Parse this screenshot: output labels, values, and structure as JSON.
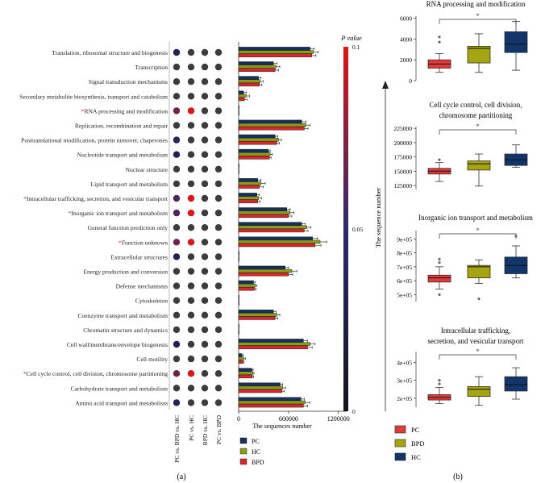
{
  "panel_labels": {
    "a": "(a)",
    "b": "(b)"
  },
  "colors": {
    "PC": "#14305c",
    "HC": "#8c9a1a",
    "BPD": "#d8262c",
    "dot_default": "#3c3c3c",
    "box_PC": "#e23a3a",
    "box_BPD": "#a5a512",
    "box_HC": "#12366a"
  },
  "chart_data": [
    {
      "type": "dot-matrix",
      "comparisons": [
        "PC vs. BPD vs. HC",
        "PC vs. HC",
        "BPD vs. HC",
        "PC vs. BPD"
      ],
      "categories": [
        "Translation, ribosomal structure and biogenesis",
        "Transcription",
        "Signal transduction mechanisms",
        "Secondary metabolite biosynthesis, transport and catabolism",
        "RNA processing and modification",
        "Replication, recombination and repair",
        "Posttranslational modification, protein turnover, chaperones",
        "Nucleotide transport and metabolism",
        "Nuclear structure",
        "Lipid transport and metabolism",
        "Intracellular trafficking, secretion, and vesicular transport",
        "Inorganic ion transport and metabolism",
        "General function prediction only",
        "Function unknown",
        "Extracellular structures",
        "Energy production and conversion",
        "Defense mechanisms",
        "Cytoskeleton",
        "Coenzyme transport and metabolism",
        "Chromatin structure and dynamics",
        "Cell wall/membrane/envelope biogenesis",
        "Cell motility",
        "Cell cycle control, cell division, chromosome partitioning",
        "Carbohydrate transport and metabolism",
        "Amino acid transport and metabolism"
      ],
      "significant_marker": "*",
      "significant": [
        4,
        10,
        11,
        13,
        22
      ],
      "p_values": [
        [
          0.035,
          null,
          null,
          null
        ],
        [
          null,
          null,
          null,
          null
        ],
        [
          null,
          null,
          null,
          null
        ],
        [
          null,
          null,
          null,
          null
        ],
        [
          0.07,
          0.1,
          null,
          null
        ],
        [
          null,
          null,
          null,
          null
        ],
        [
          0.04,
          null,
          null,
          null
        ],
        [
          0.035,
          null,
          null,
          null
        ],
        [
          null,
          null,
          null,
          null
        ],
        [
          null,
          null,
          null,
          null
        ],
        [
          0.06,
          0.1,
          null,
          null
        ],
        [
          0.06,
          0.1,
          null,
          null
        ],
        [
          null,
          null,
          null,
          null
        ],
        [
          0.07,
          0.1,
          null,
          null
        ],
        [
          0.035,
          null,
          null,
          null
        ],
        [
          null,
          null,
          null,
          null
        ],
        [
          null,
          null,
          null,
          null
        ],
        [
          null,
          null,
          null,
          null
        ],
        [
          null,
          null,
          null,
          null
        ],
        [
          null,
          null,
          null,
          null
        ],
        [
          0.035,
          null,
          null,
          null
        ],
        [
          null,
          null,
          null,
          null
        ],
        [
          0.07,
          0.1,
          null,
          null
        ],
        [
          null,
          null,
          null,
          null
        ],
        [
          0.035,
          null,
          null,
          null
        ]
      ],
      "colorbar": {
        "title": "P value",
        "ticks": [
          "0.1",
          "0.05",
          "0"
        ],
        "range": [
          0,
          0.1
        ]
      }
    },
    {
      "type": "bar",
      "orientation": "horizontal",
      "xlabel": "The sequences number",
      "ticks": [
        "0",
        "600000",
        "1200000"
      ],
      "xlim": [
        0,
        1300000
      ],
      "legend": [
        "PC",
        "HC",
        "BPD"
      ],
      "series": [
        {
          "name": "PC",
          "values": [
            860000,
            420000,
            240000,
            60000,
            3000,
            760000,
            440000,
            360000,
            3000,
            230000,
            220000,
            580000,
            760000,
            890000,
            3000,
            560000,
            180000,
            3000,
            420000,
            3000,
            780000,
            40000,
            160000,
            500000,
            750000
          ],
          "errors": [
            50000,
            40000,
            30000,
            30000,
            1000,
            50000,
            30000,
            20000,
            1000,
            40000,
            30000,
            40000,
            40000,
            60000,
            1000,
            40000,
            20000,
            1000,
            30000,
            1000,
            50000,
            15000,
            15000,
            30000,
            40000
          ]
        },
        {
          "name": "HC",
          "values": [
            900000,
            450000,
            260000,
            90000,
            3000,
            810000,
            480000,
            380000,
            3000,
            270000,
            240000,
            620000,
            820000,
            980000,
            3000,
            640000,
            200000,
            3000,
            460000,
            3000,
            860000,
            60000,
            170000,
            530000,
            800000
          ],
          "errors": [
            60000,
            45000,
            35000,
            40000,
            1000,
            50000,
            35000,
            25000,
            1000,
            50000,
            35000,
            45000,
            50000,
            80000,
            1000,
            60000,
            20000,
            1000,
            35000,
            1000,
            60000,
            20000,
            15000,
            35000,
            60000
          ]
        },
        {
          "name": "BPD",
          "values": [
            880000,
            440000,
            250000,
            70000,
            3000,
            790000,
            460000,
            370000,
            3000,
            250000,
            230000,
            600000,
            790000,
            920000,
            3000,
            600000,
            190000,
            3000,
            440000,
            3000,
            830000,
            50000,
            165000,
            520000,
            780000
          ],
          "errors": [
            50000,
            40000,
            30000,
            30000,
            1000,
            45000,
            30000,
            20000,
            1000,
            45000,
            30000,
            40000,
            45000,
            70000,
            1000,
            50000,
            20000,
            1000,
            30000,
            1000,
            55000,
            15000,
            15000,
            30000,
            50000
          ]
        }
      ]
    },
    {
      "type": "box",
      "title": "RNA processing and modification",
      "ylabel": "The sequence number",
      "groups": [
        "PC",
        "BPD",
        "HC"
      ],
      "ylim": [
        0,
        6200
      ],
      "yticks": [
        "0",
        "2000",
        "4000",
        "6000"
      ],
      "significance": "*",
      "boxes": [
        {
          "group": "PC",
          "min": 800,
          "q1": 1200,
          "median": 1600,
          "q3": 2000,
          "max": 2600,
          "outliers": [
            3700,
            4200
          ]
        },
        {
          "group": "BPD",
          "min": 800,
          "q1": 1700,
          "median": 3100,
          "q3": 3300,
          "max": 4500,
          "outliers": []
        },
        {
          "group": "HC",
          "min": 1000,
          "q1": 2700,
          "median": 3500,
          "q3": 4700,
          "max": 5700,
          "outliers": []
        }
      ]
    },
    {
      "type": "box",
      "title": "Cell cycle control, cell division, chromosome partitioning",
      "ylabel": "",
      "groups": [
        "PC",
        "BPD",
        "HC"
      ],
      "ylim": [
        118000,
        228000
      ],
      "yticks": [
        "125000",
        "150000",
        "175000",
        "200000",
        "225000"
      ],
      "significance": "*",
      "boxes": [
        {
          "group": "PC",
          "min": 132000,
          "q1": 145000,
          "median": 150000,
          "q3": 155000,
          "max": 165000,
          "outliers": [
            170000
          ]
        },
        {
          "group": "BPD",
          "min": 124000,
          "q1": 152000,
          "median": 163000,
          "q3": 168000,
          "max": 180000,
          "outliers": []
        },
        {
          "group": "HC",
          "min": 157000,
          "q1": 160000,
          "median": 170000,
          "q3": 180000,
          "max": 196000,
          "outliers": []
        }
      ]
    },
    {
      "type": "box",
      "title": "Inorganic ion transport and metabolism",
      "ylabel": "",
      "groups": [
        "PC",
        "BPD",
        "HC"
      ],
      "ylim": [
        450000,
        960000
      ],
      "yticks": [
        "5e+05",
        "6e+05",
        "7e+05",
        "8e+05",
        "9e+05"
      ],
      "significance": "*",
      "boxes": [
        {
          "group": "PC",
          "min": 540000,
          "q1": 590000,
          "median": 620000,
          "q3": 640000,
          "max": 700000,
          "outliers": [
            500000,
            730000,
            755000
          ]
        },
        {
          "group": "BPD",
          "min": 580000,
          "q1": 620000,
          "median": 700000,
          "q3": 710000,
          "max": 750000,
          "outliers": [
            470000
          ]
        },
        {
          "group": "HC",
          "min": 620000,
          "q1": 650000,
          "median": 710000,
          "q3": 770000,
          "max": 850000,
          "outliers": [
            920000
          ]
        }
      ]
    },
    {
      "type": "box",
      "title": "Intracellular trafficking, secretion, and vesicular transport",
      "ylabel": "",
      "groups": [
        "PC",
        "BPD",
        "HC"
      ],
      "ylim": [
        150000,
        460000
      ],
      "yticks": [
        "2e+05",
        "3e+05",
        "4e+05"
      ],
      "significance": "*",
      "boxes": [
        {
          "group": "PC",
          "min": 170000,
          "q1": 190000,
          "median": 205000,
          "q3": 220000,
          "max": 260000,
          "outliers": [
            280000,
            300000
          ]
        },
        {
          "group": "BPD",
          "min": 160000,
          "q1": 210000,
          "median": 250000,
          "q3": 265000,
          "max": 320000,
          "outliers": []
        },
        {
          "group": "HC",
          "min": 195000,
          "q1": 240000,
          "median": 275000,
          "q3": 320000,
          "max": 370000,
          "outliers": []
        }
      ]
    }
  ]
}
